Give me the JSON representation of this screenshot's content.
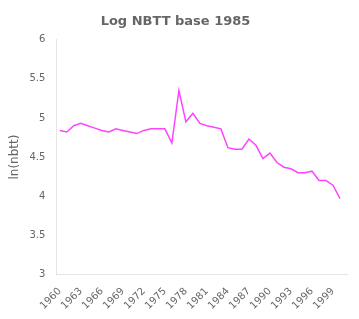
{
  "chart_data": {
    "type": "line",
    "title": "Log NBTT base 1985",
    "ylabel": "ln(nbtt)",
    "x": [
      1960,
      1961,
      1962,
      1963,
      1964,
      1965,
      1966,
      1967,
      1968,
      1969,
      1970,
      1971,
      1972,
      1973,
      1974,
      1975,
      1976,
      1977,
      1978,
      1979,
      1980,
      1981,
      1982,
      1983,
      1984,
      1985,
      1986,
      1987,
      1988,
      1989,
      1990,
      1991,
      1992,
      1993,
      1994,
      1995,
      1996,
      1997,
      1998,
      1999,
      2000
    ],
    "values": [
      4.84,
      4.82,
      4.9,
      4.93,
      4.9,
      4.87,
      4.84,
      4.82,
      4.86,
      4.84,
      4.82,
      4.8,
      4.84,
      4.86,
      4.86,
      4.86,
      4.68,
      5.35,
      4.95,
      5.06,
      4.93,
      4.9,
      4.88,
      4.86,
      4.62,
      4.6,
      4.6,
      4.73,
      4.65,
      4.48,
      4.55,
      4.43,
      4.37,
      4.35,
      4.3,
      4.3,
      4.32,
      4.2,
      4.2,
      4.14,
      3.97
    ],
    "color": "#ff44ff",
    "xlim": [
      1959.5,
      2001
    ],
    "xticks": [
      1960,
      1963,
      1966,
      1969,
      1972,
      1975,
      1978,
      1981,
      1984,
      1987,
      1990,
      1993,
      1996,
      1999
    ],
    "ylim": [
      3,
      6
    ],
    "yticks": [
      3,
      3.5,
      4,
      4.5,
      5,
      5.5,
      6
    ],
    "grid": false
  }
}
